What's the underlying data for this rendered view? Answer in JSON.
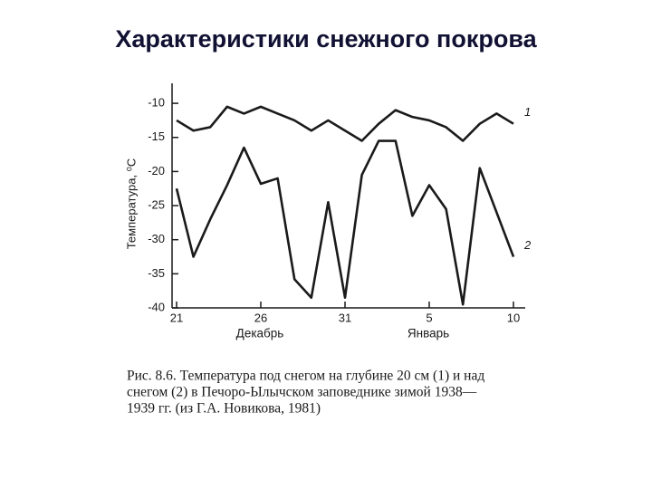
{
  "title": "Характеристики снежного покрова",
  "chart_data": {
    "type": "line",
    "y_label": "Температура, ⁰С",
    "x_group_labels": [
      "Декабрь",
      "Январь"
    ],
    "categories": [
      "21",
      null,
      null,
      null,
      null,
      "26",
      null,
      null,
      null,
      null,
      "31",
      null,
      null,
      null,
      null,
      "5",
      null,
      null,
      null,
      null,
      "10"
    ],
    "series": [
      {
        "name": "1",
        "color": "#1a1a1a",
        "values": [
          -12.5,
          -14,
          -13.5,
          -10.5,
          -11.5,
          -10.5,
          -11.5,
          -12.5,
          -14,
          -12.5,
          -14,
          -15.5,
          -13,
          -11,
          -12,
          -12.5,
          -13.5,
          -15.5,
          -13,
          -11.5,
          -13
        ]
      },
      {
        "name": "2",
        "color": "#1a1a1a",
        "values": [
          -22.5,
          -32.5,
          -27,
          -22,
          -16.5,
          -21.8,
          -21,
          -35.8,
          -38.5,
          -24.5,
          -38.5,
          -20.5,
          -15.5,
          -15.5,
          -26.5,
          -22,
          -25.5,
          -39.5,
          -19.5,
          -26,
          -32.5
        ]
      }
    ],
    "ylim": [
      -40,
      -8.5
    ],
    "yticks": [
      -10,
      -15,
      -20,
      -25,
      -30,
      -35,
      -40
    ],
    "grid": false,
    "caption": [
      "Рис. 8.6. Температура под снегом на глубине 20 см (1) и над",
      "снегом (2) в Печоро-Ылычском заповеднике зимой 1938—",
      "1939 гг. (из Г.А. Новикова, 1981)"
    ]
  }
}
